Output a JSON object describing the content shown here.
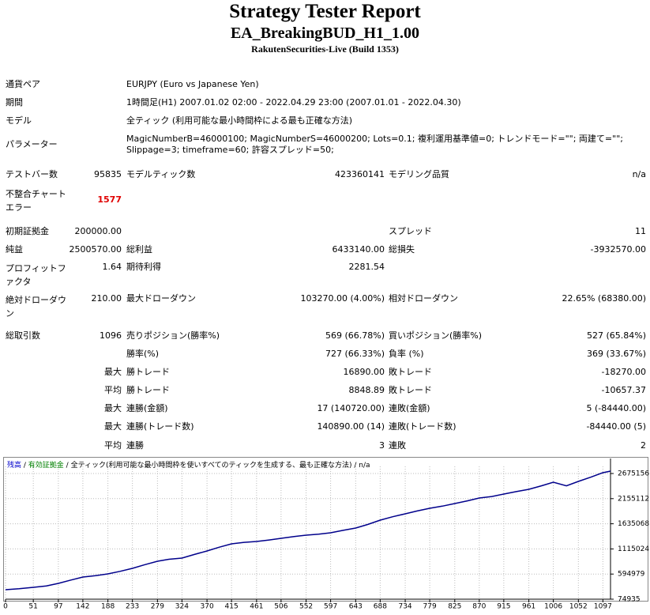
{
  "header": {
    "title": "Strategy Tester Report",
    "subtitle": "EA_BreakingBUD_H1_1.00",
    "broker": "RakutenSecurities-Live (Build 1353)"
  },
  "info": [
    [
      "通貨ペア",
      "EURJPY (Euro vs Japanese Yen)"
    ],
    [
      "期間",
      "1時間足(H1) 2007.01.02 02:00 - 2022.04.29 23:00 (2007.01.01 - 2022.04.30)"
    ],
    [
      "モデル",
      "全ティック (利用可能な最小時間枠による最も正確な方法)"
    ],
    [
      "パラメーター",
      "MagicNumberB=46000100; MagicNumberS=46000200; Lots=0.1; 複利運用基準値=0; トレンドモード=\"\"; 両建て=\"\"; Slippage=3; timeframe=60; 許容スプレッド=50;"
    ]
  ],
  "table": {
    "rows": [
      [
        "テストバー数",
        "95835",
        "モデルティック数",
        "423360141",
        "モデリング品質",
        "n/a"
      ],
      [
        "不整合チャートエラー",
        "1577",
        null,
        null,
        null,
        null
      ],
      [
        "初期証拠金",
        "200000.00",
        null,
        null,
        "スプレッド",
        "11"
      ],
      [
        "純益",
        "2500570.00",
        "総利益",
        "6433140.00",
        "総損失",
        "-3932570.00"
      ],
      [
        "プロフィットファクタ",
        "1.64",
        "期待利得",
        "2281.54",
        null,
        null
      ],
      [
        "絶対ドローダウン",
        "210.00",
        "最大ドローダウン",
        "103270.00 (4.00%)",
        "相対ドローダウン",
        "22.65% (68380.00)"
      ],
      [
        "総取引数",
        "1096",
        "売りポジション(勝率%)",
        "569 (66.78%)",
        "買いポジション(勝率%)",
        "527 (65.84%)"
      ],
      [
        null,
        null,
        "勝率(%)",
        "727 (66.33%)",
        "負率 (%)",
        "369 (33.67%)"
      ],
      [
        null,
        "最大",
        "勝トレード",
        "16890.00",
        "敗トレード",
        "-18270.00"
      ],
      [
        null,
        "平均",
        "勝トレード",
        "8848.89",
        "敗トレード",
        "-10657.37"
      ],
      [
        null,
        "最大",
        "連勝(金額)",
        "17 (140720.00)",
        "連敗(金額)",
        "5 (-84440.00)"
      ],
      [
        null,
        "最大",
        "連勝(トレード数)",
        "140890.00 (14)",
        "連敗(トレード数)",
        "-84440.00 (5)"
      ],
      [
        null,
        "平均",
        "連勝",
        "3",
        "連敗",
        "2"
      ]
    ]
  },
  "chart_data": {
    "type": "line",
    "legend": [
      {
        "text": "残高",
        "color": "#0000cc"
      },
      {
        "text": "有効証拠金",
        "color": "#008000"
      },
      {
        "text": "全ティック(利用可能な最小時間枠を使いすべてのティックを生成する、最も正確な方法)",
        "color": "#000000"
      },
      {
        "text": "n/a",
        "color": "#000000"
      }
    ],
    "x": [
      0,
      25,
      51,
      75,
      97,
      120,
      142,
      165,
      188,
      210,
      233,
      256,
      279,
      300,
      324,
      347,
      370,
      392,
      415,
      438,
      461,
      484,
      506,
      530,
      552,
      575,
      597,
      620,
      643,
      665,
      688,
      711,
      734,
      756,
      779,
      802,
      825,
      848,
      870,
      893,
      915,
      938,
      961,
      984,
      1006,
      1030,
      1052,
      1075,
      1097,
      1111
    ],
    "series": [
      {
        "color": "#00008b",
        "values": [
          271000,
          290000,
          320000,
          350000,
          402000,
          470000,
          533000,
          560000,
          598000,
          650000,
          713000,
          790000,
          860000,
          900000,
          925000,
          1000000,
          1073000,
          1150000,
          1220000,
          1250000,
          1269000,
          1300000,
          1334000,
          1370000,
          1400000,
          1420000,
          1449000,
          1500000,
          1547000,
          1620000,
          1710000,
          1780000,
          1841000,
          1900000,
          1956000,
          2000000,
          2054000,
          2110000,
          2168000,
          2200000,
          2250000,
          2300000,
          2348000,
          2420000,
          2495000,
          2420000,
          2512000,
          2600000,
          2692000,
          2724000
        ]
      }
    ],
    "xlim": [
      0,
      1111
    ],
    "ylim": [
      74935,
      2822400
    ],
    "xticks": [
      0,
      51,
      97,
      142,
      188,
      233,
      279,
      324,
      370,
      415,
      461,
      506,
      552,
      597,
      643,
      688,
      734,
      779,
      825,
      870,
      915,
      961,
      1006,
      1052,
      1097
    ],
    "yticks": [
      74935,
      594979,
      1115024,
      1635068,
      2155112,
      2675156
    ],
    "grid": true
  }
}
